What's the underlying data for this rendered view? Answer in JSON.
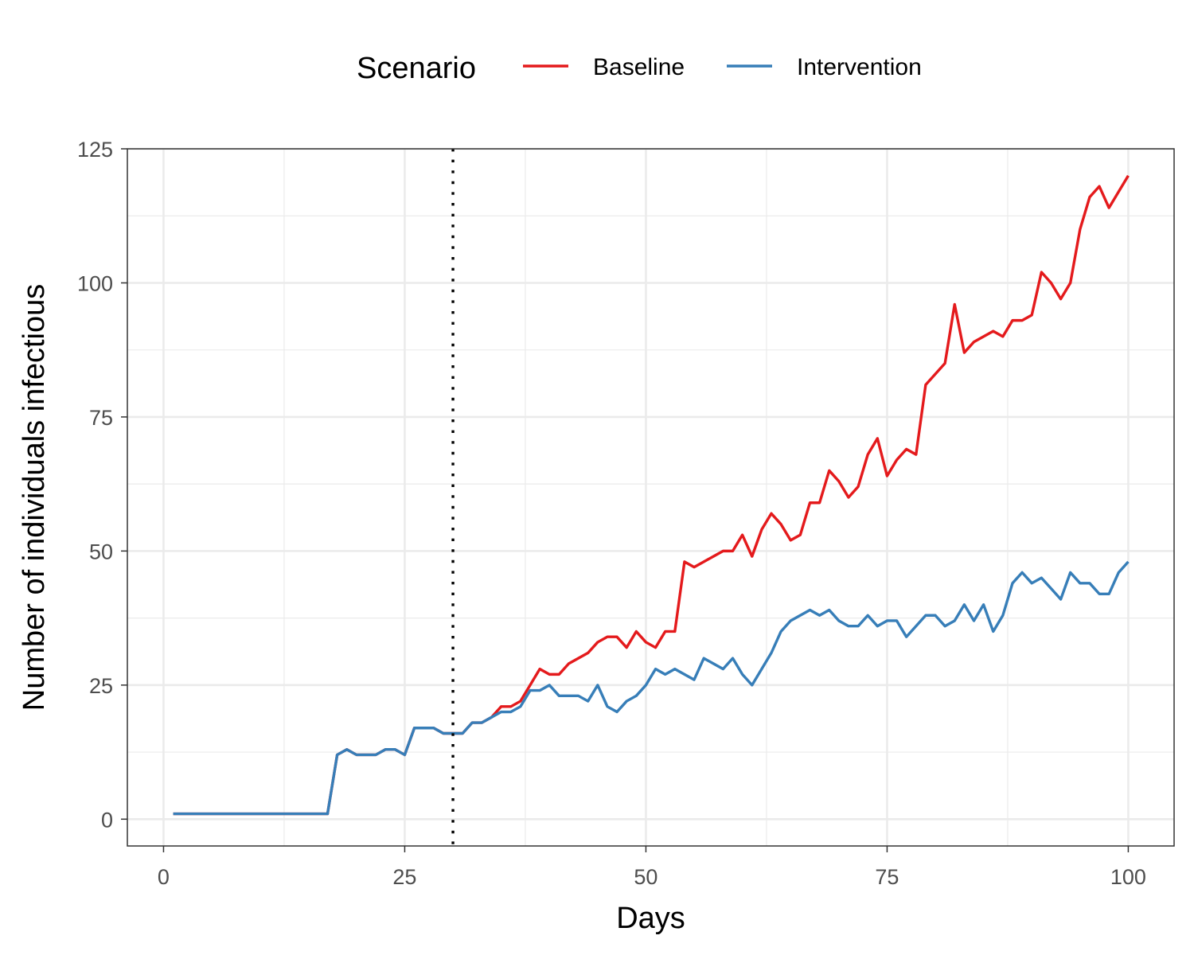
{
  "chart_data": {
    "type": "line",
    "title": "",
    "xlabel": "Days",
    "ylabel": "Number of individuals infectious",
    "xlim": [
      -3.75,
      104.75
    ],
    "ylim": [
      -5,
      125
    ],
    "x_ticks": [
      0,
      25,
      50,
      75,
      100
    ],
    "y_ticks": [
      0,
      25,
      50,
      75,
      100,
      125
    ],
    "x_tick_labels": [
      "0",
      "25",
      "50",
      "75",
      "100"
    ],
    "y_tick_labels": [
      "0",
      "25",
      "50",
      "75",
      "100",
      "125"
    ],
    "grid": true,
    "legend": {
      "title": "Scenario",
      "position": "top"
    },
    "vline": {
      "x": 30,
      "style": "dotted",
      "color": "#000000"
    },
    "x": [
      1,
      2,
      3,
      4,
      5,
      6,
      7,
      8,
      9,
      10,
      11,
      12,
      13,
      14,
      15,
      16,
      17,
      18,
      19,
      20,
      21,
      22,
      23,
      24,
      25,
      26,
      27,
      28,
      29,
      30,
      31,
      32,
      33,
      34,
      35,
      36,
      37,
      38,
      39,
      40,
      41,
      42,
      43,
      44,
      45,
      46,
      47,
      48,
      49,
      50,
      51,
      52,
      53,
      54,
      55,
      56,
      57,
      58,
      59,
      60,
      61,
      62,
      63,
      64,
      65,
      66,
      67,
      68,
      69,
      70,
      71,
      72,
      73,
      74,
      75,
      76,
      77,
      78,
      79,
      80,
      81,
      82,
      83,
      84,
      85,
      86,
      87,
      88,
      89,
      90,
      91,
      92,
      93,
      94,
      95,
      96,
      97,
      98,
      99,
      100
    ],
    "series": [
      {
        "name": "Baseline",
        "color": "#e41a1c",
        "values": [
          1,
          1,
          1,
          1,
          1,
          1,
          1,
          1,
          1,
          1,
          1,
          1,
          1,
          1,
          1,
          1,
          1,
          12,
          13,
          12,
          12,
          12,
          13,
          13,
          12,
          17,
          17,
          17,
          16,
          16,
          16,
          18,
          18,
          19,
          21,
          21,
          22,
          25,
          28,
          27,
          27,
          29,
          30,
          31,
          33,
          34,
          34,
          32,
          35,
          33,
          32,
          35,
          35,
          48,
          47,
          48,
          49,
          50,
          50,
          53,
          49,
          54,
          57,
          55,
          52,
          53,
          59,
          59,
          65,
          63,
          60,
          62,
          68,
          71,
          64,
          67,
          69,
          68,
          81,
          83,
          85,
          96,
          87,
          89,
          90,
          91,
          90,
          93,
          93,
          94,
          102,
          100,
          97,
          100,
          110,
          116,
          118,
          114,
          117,
          120
        ]
      },
      {
        "name": "Intervention",
        "color": "#377eb8",
        "values": [
          1,
          1,
          1,
          1,
          1,
          1,
          1,
          1,
          1,
          1,
          1,
          1,
          1,
          1,
          1,
          1,
          1,
          12,
          13,
          12,
          12,
          12,
          13,
          13,
          12,
          17,
          17,
          17,
          16,
          16,
          16,
          18,
          18,
          19,
          20,
          20,
          21,
          24,
          24,
          25,
          23,
          23,
          23,
          22,
          25,
          21,
          20,
          22,
          23,
          25,
          28,
          27,
          28,
          27,
          26,
          30,
          29,
          28,
          30,
          27,
          25,
          28,
          31,
          35,
          37,
          38,
          39,
          38,
          39,
          37,
          36,
          36,
          38,
          36,
          37,
          37,
          34,
          36,
          38,
          38,
          36,
          37,
          40,
          37,
          40,
          35,
          38,
          44,
          46,
          44,
          45,
          43,
          41,
          46,
          44,
          44,
          42,
          42,
          46,
          48
        ]
      }
    ]
  }
}
